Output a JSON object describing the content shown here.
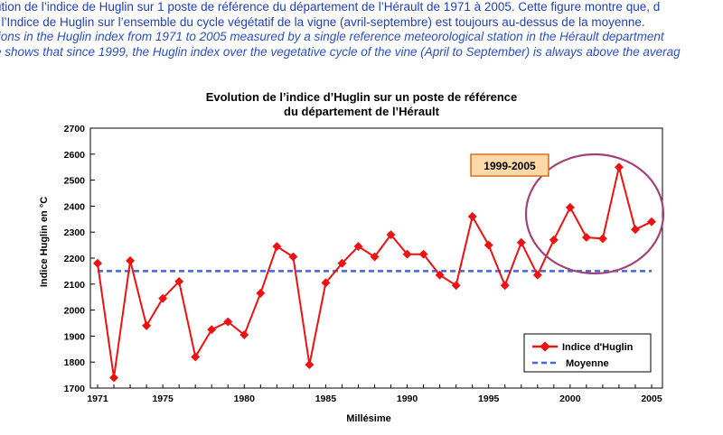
{
  "caption": {
    "line1": "ution de l’indice de Huglin sur 1 poste de référence du département de l’Hérault de 1971 à 2005. Cette figure montre que, d",
    "line2": ", l’Indice de Huglin sur l’ensemble du cycle végétatif de la vigne (avril-septembre) est toujours au-dessus de la moyenne.",
    "line3": "tions in the Huglin index from 1971 to 2005 measured by a single reference meteorological station in the Hérault department",
    "line4": "e shows that since 1999, the Huglin index over the vegetative cycle of the vine (April to September) is always above the averag"
  },
  "chart_data": {
    "type": "line",
    "title_line1": "Evolution de l’indice d’Huglin sur un poste de référence",
    "title_line2": "du département de l’Hérault",
    "xlabel": "Millésime",
    "ylabel": "Indice Huglin en °C",
    "xlim": [
      1971,
      2005
    ],
    "ylim": [
      1700,
      2700
    ],
    "x_ticks": [
      1971,
      1975,
      1980,
      1985,
      1990,
      1995,
      2000,
      2005
    ],
    "y_ticks": [
      1700,
      1800,
      1900,
      2000,
      2100,
      2200,
      2300,
      2400,
      2500,
      2600,
      2700
    ],
    "x": [
      1971,
      1972,
      1973,
      1974,
      1975,
      1976,
      1977,
      1978,
      1979,
      1980,
      1981,
      1982,
      1983,
      1984,
      1985,
      1986,
      1987,
      1988,
      1989,
      1990,
      1991,
      1992,
      1993,
      1994,
      1995,
      1996,
      1997,
      1998,
      1999,
      2000,
      2001,
      2002,
      2003,
      2004,
      2005
    ],
    "series": [
      {
        "name": "Indice d'Huglin",
        "color": "#ee1111",
        "values": [
          2180,
          1740,
          2190,
          1940,
          2045,
          2110,
          1820,
          1925,
          1955,
          1905,
          2065,
          2245,
          2205,
          1790,
          2105,
          2180,
          2245,
          2205,
          2290,
          2215,
          2215,
          2135,
          2095,
          2360,
          2250,
          2095,
          2260,
          2135,
          2270,
          2395,
          2280,
          2275,
          2550,
          2310,
          2340
        ]
      },
      {
        "name": "Moyenne",
        "color": "#4466dd",
        "value": 2150,
        "style": "dashed"
      }
    ],
    "legend_position": "bottom-right",
    "annotation": {
      "label": "1999-2005",
      "box_color": "#fdd9a8",
      "box_border": "#d4701e",
      "ellipse_color": "#a3407a"
    }
  }
}
